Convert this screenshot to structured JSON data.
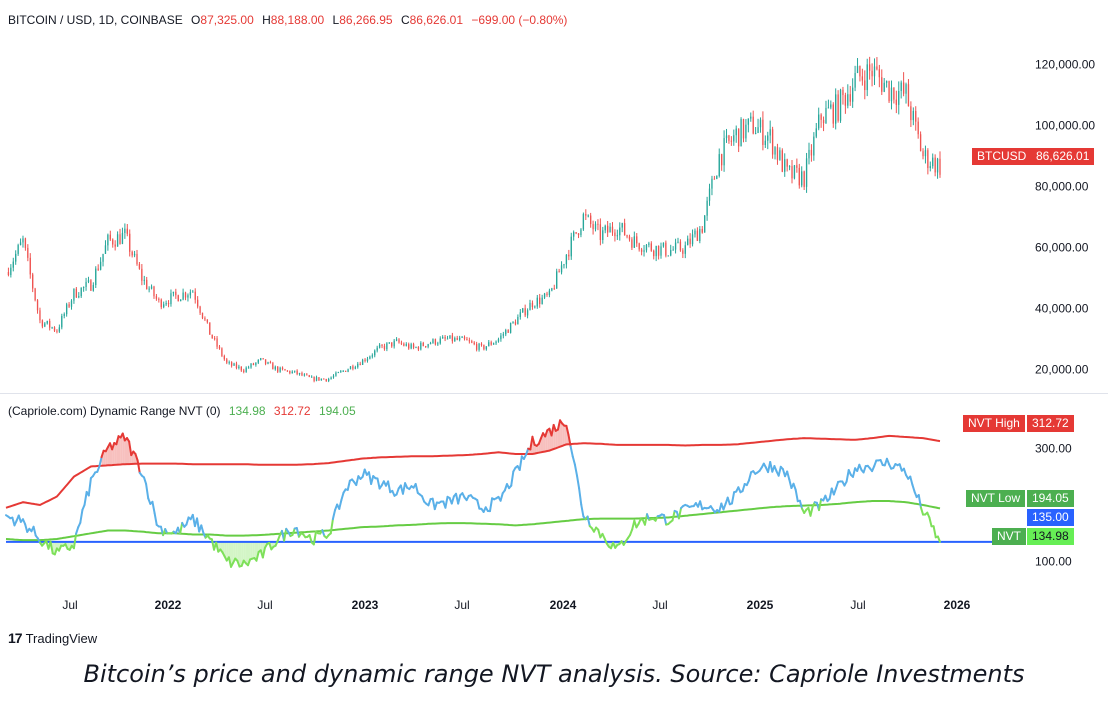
{
  "header": {
    "symbol": "BITCOIN / USD, 1D, COINBASE",
    "o_label": "O",
    "o_value": "87,325.00",
    "h_label": "H",
    "h_value": "88,188.00",
    "l_label": "L",
    "l_value": "86,266.95",
    "c_label": "C",
    "c_value": "86,626.01",
    "change": "−699.00 (−0.80%)"
  },
  "indicator": {
    "name": "(Capriole.com) Dynamic Range NVT (0)",
    "v1": "134.98",
    "v2": "312.72",
    "v3": "194.05"
  },
  "price_axis": {
    "ticks": [
      "120,000.00",
      "100,000.00",
      "80,000.00",
      "60,000.00",
      "40,000.00",
      "20,000.00"
    ],
    "tag_label": "BTCUSD",
    "tag_value": "86,626.01"
  },
  "nvt_axis": {
    "ticks": [
      "300.00",
      "100.00"
    ],
    "high_label": "NVT High",
    "high_value": "312.72",
    "low_label": "NVT Low",
    "low_value": "194.05",
    "line_value": "135.00",
    "nvt_label": "NVT",
    "nvt_value": "134.98"
  },
  "time_axis": [
    {
      "label": "Jul",
      "bold": false
    },
    {
      "label": "2022",
      "bold": true
    },
    {
      "label": "Jul",
      "bold": false
    },
    {
      "label": "2023",
      "bold": true
    },
    {
      "label": "Jul",
      "bold": false
    },
    {
      "label": "2024",
      "bold": true
    },
    {
      "label": "Jul",
      "bold": false
    },
    {
      "label": "2025",
      "bold": true
    },
    {
      "label": "Jul",
      "bold": false
    },
    {
      "label": "2026",
      "bold": true
    }
  ],
  "branding": "TradingView",
  "caption": "Bitcoin’s price and dynamic range NVT analysis. Source: Capriole Investments",
  "colors": {
    "up": "#26a69a",
    "down": "#ef5350",
    "nvt": "#5ab0e8",
    "high": "#e53935",
    "low": "#66cc44",
    "line": "#2962ff"
  },
  "chart_data": [
    {
      "type": "candlestick",
      "title": "BITCOIN / USD, 1D, COINBASE",
      "ylim": [
        15000,
        128000
      ],
      "x": [
        "2021-05",
        "2021-06",
        "2021-07",
        "2021-08",
        "2021-09",
        "2021-10",
        "2021-11",
        "2021-12",
        "2022-01",
        "2022-02",
        "2022-03",
        "2022-04",
        "2022-05",
        "2022-06",
        "2022-07",
        "2022-08",
        "2022-09",
        "2022-10",
        "2022-11",
        "2022-12",
        "2023-01",
        "2023-02",
        "2023-03",
        "2023-04",
        "2023-05",
        "2023-06",
        "2023-07",
        "2023-08",
        "2023-09",
        "2023-10",
        "2023-11",
        "2023-12",
        "2024-01",
        "2024-02",
        "2024-03",
        "2024-04",
        "2024-05",
        "2024-06",
        "2024-07",
        "2024-08",
        "2024-09",
        "2024-10",
        "2024-11",
        "2024-12",
        "2025-01",
        "2025-02",
        "2025-03",
        "2025-04",
        "2025-05",
        "2025-06",
        "2025-07",
        "2025-08",
        "2025-09",
        "2025-10",
        "2025-11",
        "2025-12"
      ],
      "close": [
        52000,
        62000,
        36000,
        33000,
        45000,
        48000,
        62000,
        64000,
        50000,
        42000,
        44000,
        46000,
        32000,
        22000,
        20000,
        23000,
        20000,
        19000,
        17000,
        17000,
        20000,
        23000,
        27000,
        29000,
        27000,
        29000,
        30000,
        29500,
        27000,
        30000,
        36000,
        42000,
        44000,
        58000,
        70000,
        64000,
        67000,
        62000,
        60000,
        59000,
        60000,
        67000,
        90000,
        97000,
        100000,
        96000,
        84000,
        83000,
        103000,
        106000,
        115000,
        118000,
        112000,
        110000,
        90000,
        86626
      ]
    },
    {
      "type": "line",
      "title": "(Capriole.com) Dynamic Range NVT (0)",
      "ylim": [
        50,
        350
      ],
      "x": [
        "2021-05",
        "2021-06",
        "2021-07",
        "2021-08",
        "2021-09",
        "2021-10",
        "2021-11",
        "2021-12",
        "2022-01",
        "2022-02",
        "2022-03",
        "2022-04",
        "2022-05",
        "2022-06",
        "2022-07",
        "2022-08",
        "2022-09",
        "2022-10",
        "2022-11",
        "2022-12",
        "2023-01",
        "2023-02",
        "2023-03",
        "2023-04",
        "2023-05",
        "2023-06",
        "2023-07",
        "2023-08",
        "2023-09",
        "2023-10",
        "2023-11",
        "2023-12",
        "2024-01",
        "2024-02",
        "2024-03",
        "2024-04",
        "2024-05",
        "2024-06",
        "2024-07",
        "2024-08",
        "2024-09",
        "2024-10",
        "2024-11",
        "2024-12",
        "2025-01",
        "2025-02",
        "2025-03",
        "2025-04",
        "2025-05",
        "2025-06",
        "2025-07",
        "2025-08",
        "2025-09",
        "2025-10",
        "2025-11",
        "2025-12"
      ],
      "series": [
        {
          "name": "NVT",
          "values": [
            180,
            170,
            140,
            115,
            130,
            240,
            300,
            320,
            260,
            160,
            150,
            175,
            140,
            100,
            95,
            110,
            140,
            160,
            140,
            150,
            230,
            255,
            240,
            225,
            235,
            200,
            205,
            215,
            195,
            205,
            255,
            310,
            330,
            350,
            185,
            150,
            120,
            165,
            180,
            175,
            190,
            200,
            195,
            215,
            260,
            270,
            255,
            185,
            200,
            230,
            265,
            270,
            275,
            260,
            190,
            134.98
          ]
        },
        {
          "name": "NVT High",
          "values": [
            195,
            205,
            200,
            215,
            250,
            268,
            270,
            272,
            273,
            273,
            273,
            272,
            272,
            272,
            272,
            271,
            271,
            271,
            272,
            274,
            278,
            282,
            284,
            285,
            286,
            286,
            287,
            288,
            290,
            293,
            290,
            290,
            296,
            307,
            309,
            308,
            306,
            306,
            306,
            306,
            305,
            306,
            306,
            307,
            310,
            313,
            316,
            318,
            317,
            316,
            315,
            318,
            322,
            320,
            318,
            312.72
          ]
        },
        {
          "name": "NVT Low",
          "values": [
            140,
            138,
            138,
            140,
            145,
            150,
            155,
            155,
            153,
            150,
            150,
            148,
            148,
            146,
            146,
            147,
            149,
            151,
            153,
            155,
            158,
            161,
            162,
            164,
            165,
            167,
            168,
            168,
            167,
            166,
            164,
            166,
            169,
            172,
            175,
            176,
            176,
            176,
            177,
            178,
            181,
            184,
            187,
            190,
            193,
            196,
            198,
            199,
            200,
            202,
            205,
            207,
            207,
            205,
            200,
            194.05
          ]
        },
        {
          "name": "Baseline",
          "values": [
            135,
            135,
            135,
            135,
            135,
            135,
            135,
            135,
            135,
            135,
            135,
            135,
            135,
            135,
            135,
            135,
            135,
            135,
            135,
            135,
            135,
            135,
            135,
            135,
            135,
            135,
            135,
            135,
            135,
            135,
            135,
            135,
            135,
            135,
            135,
            135,
            135,
            135,
            135,
            135,
            135,
            135,
            135,
            135,
            135,
            135,
            135,
            135,
            135,
            135,
            135,
            135,
            135,
            135,
            135,
            135
          ]
        }
      ]
    }
  ]
}
